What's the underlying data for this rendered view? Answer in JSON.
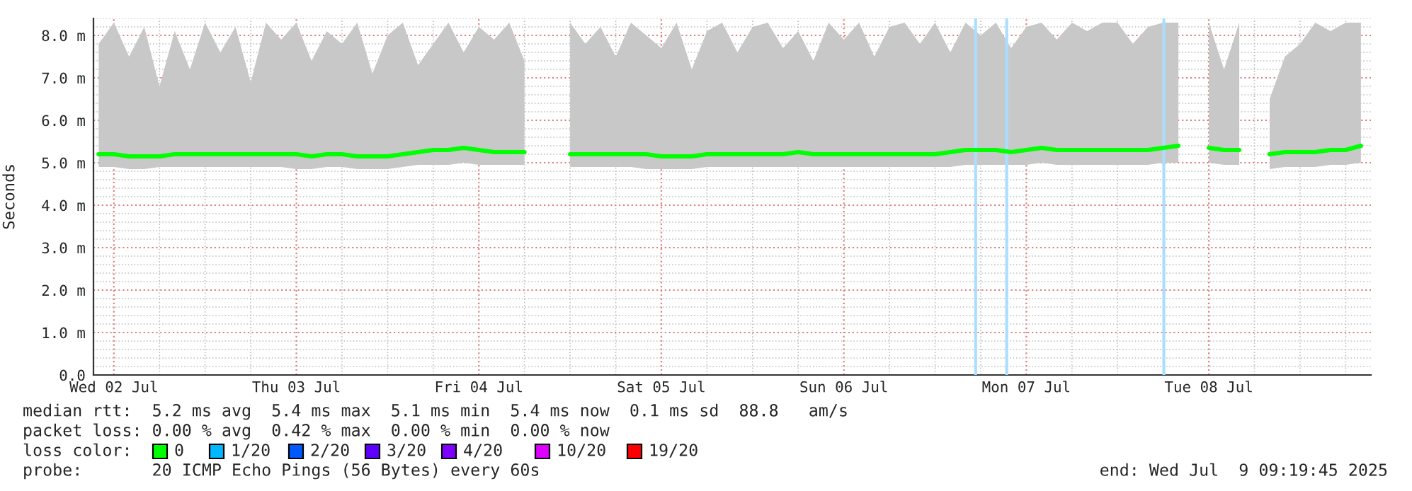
{
  "chart_data": {
    "type": "line",
    "ylabel": "Seconds",
    "xlim": [
      "2025-07-02T09:19",
      "2025-07-09T09:19"
    ],
    "xticks": [
      {
        "value": "2025-07-02T12:00",
        "label": "Wed 02 Jul"
      },
      {
        "value": "2025-07-03T12:00",
        "label": "Thu 03 Jul"
      },
      {
        "value": "2025-07-04T12:00",
        "label": "Fri 04 Jul"
      },
      {
        "value": "2025-07-05T12:00",
        "label": "Sat 05 Jul"
      },
      {
        "value": "2025-07-06T12:00",
        "label": "Sun 06 Jul"
      },
      {
        "value": "2025-07-07T12:00",
        "label": "Mon 07 Jul"
      },
      {
        "value": "2025-07-08T12:00",
        "label": "Tue 08 Jul"
      }
    ],
    "ylim": [
      0,
      8.4
    ],
    "yticks": [
      {
        "value": 0,
        "label": "0.0"
      },
      {
        "value": 1,
        "label": "1.0 m"
      },
      {
        "value": 2,
        "label": "2.0 m"
      },
      {
        "value": 3,
        "label": "3.0 m"
      },
      {
        "value": 4,
        "label": "4.0 m"
      },
      {
        "value": 5,
        "label": "5.0 m"
      },
      {
        "value": 6,
        "label": "6.0 m"
      },
      {
        "value": 7,
        "label": "7.0 m"
      },
      {
        "value": 8,
        "label": "8.0 m"
      }
    ],
    "grid": true,
    "marker": "none",
    "line_style": "solid",
    "series": [
      {
        "color": "#00ff00",
        "x": [
          "2025-07-02T10:00",
          "2025-07-02T12:00",
          "2025-07-02T14:00",
          "2025-07-02T16:00",
          "2025-07-02T18:00",
          "2025-07-02T20:00",
          "2025-07-02T22:00",
          "2025-07-03T00:00",
          "2025-07-03T02:00",
          "2025-07-03T04:00",
          "2025-07-03T06:00",
          "2025-07-03T08:00",
          "2025-07-03T10:00",
          "2025-07-03T12:00",
          "2025-07-03T14:00",
          "2025-07-03T16:00",
          "2025-07-03T18:00",
          "2025-07-03T20:00",
          "2025-07-03T22:00",
          "2025-07-04T00:00",
          "2025-07-04T02:00",
          "2025-07-04T04:00",
          "2025-07-04T06:00",
          "2025-07-04T08:00",
          "2025-07-04T10:00",
          "2025-07-04T12:00",
          "2025-07-04T14:00",
          "2025-07-04T16:00",
          "2025-07-04T18:00"
        ],
        "values": [
          5.2,
          5.2,
          5.15,
          5.15,
          5.15,
          5.2,
          5.2,
          5.2,
          5.2,
          5.2,
          5.2,
          5.2,
          5.2,
          5.2,
          5.15,
          5.2,
          5.2,
          5.15,
          5.15,
          5.15,
          5.2,
          5.25,
          5.3,
          5.3,
          5.35,
          5.3,
          5.25,
          5.25,
          5.25
        ],
        "lower": [
          4.9,
          4.9,
          4.85,
          4.85,
          4.9,
          4.9,
          4.9,
          4.9,
          4.9,
          4.9,
          4.9,
          4.9,
          4.9,
          4.85,
          4.85,
          4.9,
          4.9,
          4.85,
          4.85,
          4.85,
          4.9,
          4.95,
          4.95,
          4.95,
          5.0,
          4.95,
          4.95,
          4.95,
          4.95
        ],
        "upper": [
          7.8,
          8.3,
          7.5,
          8.2,
          6.8,
          8.1,
          7.2,
          8.3,
          7.6,
          8.2,
          6.9,
          8.3,
          7.9,
          8.3,
          7.4,
          8.1,
          7.8,
          8.3,
          7.1,
          8.0,
          8.3,
          7.3,
          7.8,
          8.3,
          7.6,
          8.2,
          7.9,
          8.3,
          7.4
        ]
      },
      {
        "color": "#00ff00",
        "x": [
          "2025-07-05T00:00",
          "2025-07-05T02:00",
          "2025-07-05T04:00",
          "2025-07-05T06:00",
          "2025-07-05T08:00",
          "2025-07-05T10:00",
          "2025-07-05T12:00",
          "2025-07-05T14:00",
          "2025-07-05T16:00",
          "2025-07-05T18:00",
          "2025-07-05T20:00",
          "2025-07-05T22:00",
          "2025-07-06T00:00",
          "2025-07-06T02:00",
          "2025-07-06T04:00",
          "2025-07-06T06:00",
          "2025-07-06T08:00",
          "2025-07-06T10:00",
          "2025-07-06T12:00",
          "2025-07-06T14:00",
          "2025-07-06T16:00",
          "2025-07-06T18:00",
          "2025-07-06T20:00",
          "2025-07-06T22:00",
          "2025-07-07T00:00",
          "2025-07-07T02:00",
          "2025-07-07T04:00",
          "2025-07-07T06:00",
          "2025-07-07T08:00",
          "2025-07-07T10:00",
          "2025-07-07T12:00",
          "2025-07-07T14:00",
          "2025-07-07T16:00",
          "2025-07-07T18:00",
          "2025-07-07T20:00",
          "2025-07-07T22:00",
          "2025-07-08T00:00",
          "2025-07-08T02:00",
          "2025-07-08T04:00",
          "2025-07-08T06:00",
          "2025-07-08T08:00"
        ],
        "values": [
          5.2,
          5.2,
          5.2,
          5.2,
          5.2,
          5.2,
          5.15,
          5.15,
          5.15,
          5.2,
          5.2,
          5.2,
          5.2,
          5.2,
          5.2,
          5.25,
          5.2,
          5.2,
          5.2,
          5.2,
          5.2,
          5.2,
          5.2,
          5.2,
          5.2,
          5.25,
          5.3,
          5.3,
          5.3,
          5.25,
          5.3,
          5.35,
          5.3,
          5.3,
          5.3,
          5.3,
          5.3,
          5.3,
          5.3,
          5.35,
          5.4
        ],
        "lower": [
          4.9,
          4.9,
          4.9,
          4.9,
          4.9,
          4.85,
          4.85,
          4.85,
          4.85,
          4.9,
          4.9,
          4.9,
          4.9,
          4.9,
          4.9,
          4.9,
          4.9,
          4.9,
          4.9,
          4.9,
          4.9,
          4.9,
          4.9,
          4.9,
          4.9,
          4.9,
          4.95,
          4.95,
          4.95,
          4.95,
          4.95,
          5.0,
          4.95,
          4.95,
          4.95,
          4.95,
          4.95,
          4.95,
          4.95,
          5.0,
          5.0
        ],
        "upper": [
          8.3,
          7.8,
          8.2,
          7.5,
          8.3,
          8.0,
          7.7,
          8.3,
          7.2,
          8.1,
          8.3,
          7.6,
          8.2,
          8.3,
          7.7,
          8.1,
          7.4,
          8.3,
          7.9,
          8.3,
          7.5,
          8.2,
          8.3,
          7.8,
          8.3,
          7.6,
          8.3,
          8.0,
          8.3,
          7.7,
          8.2,
          8.3,
          7.9,
          8.3,
          8.1,
          8.3,
          8.3,
          7.8,
          8.2,
          8.3,
          8.3
        ]
      },
      {
        "color": "#00ff00",
        "x": [
          "2025-07-08T12:00",
          "2025-07-08T14:00",
          "2025-07-08T16:00"
        ],
        "values": [
          5.35,
          5.3,
          5.3
        ],
        "lower": [
          5.0,
          4.95,
          4.95
        ],
        "upper": [
          8.3,
          7.2,
          8.3
        ]
      },
      {
        "color": "#00ff00",
        "x": [
          "2025-07-08T20:00",
          "2025-07-08T22:00",
          "2025-07-09T00:00",
          "2025-07-09T02:00",
          "2025-07-09T04:00",
          "2025-07-09T06:00",
          "2025-07-09T08:00"
        ],
        "values": [
          5.2,
          5.25,
          5.25,
          5.25,
          5.3,
          5.3,
          5.4
        ],
        "lower": [
          4.85,
          4.9,
          4.9,
          4.9,
          4.95,
          4.95,
          5.0
        ],
        "upper": [
          6.5,
          7.5,
          7.8,
          8.3,
          8.1,
          8.3,
          8.3
        ]
      }
    ],
    "ref_lines": [
      {
        "axis": "x",
        "value": "2025-07-07T05:20",
        "color": "#aadeff"
      },
      {
        "axis": "x",
        "value": "2025-07-07T09:25",
        "color": "#aadeff"
      },
      {
        "axis": "x",
        "value": "2025-07-08T06:05",
        "color": "#aadeff"
      }
    ],
    "annotations": [
      "median rtt:  5.2 ms avg  5.4 ms max  5.1 ms min  5.4 ms now  0.1 ms sd  88.8   am/s",
      "packet loss: 0.00 % avg  0.42 % max  0.00 % min  0.00 % now",
      "loss color:",
      "0",
      "1/20",
      "2/20",
      "3/20",
      "4/20",
      "10/20",
      "19/20",
      "probe:       20 ICMP Echo Pings (56 Bytes) every 60s",
      "end: Wed Jul  9 09:19:45 2025"
    ]
  }
}
